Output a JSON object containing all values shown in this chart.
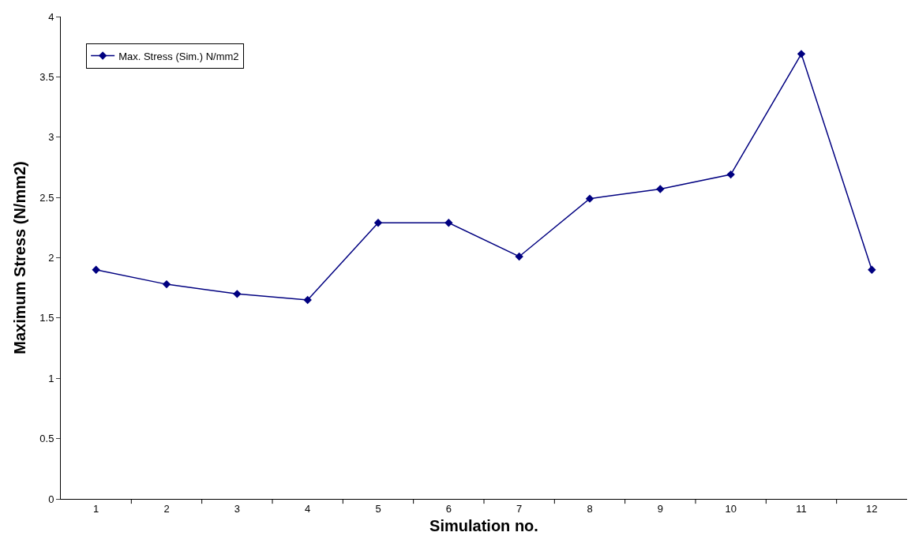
{
  "chart_data": {
    "type": "line",
    "xlabel": "Simulation no.",
    "ylabel": "Maximum Stress (N/mm2)",
    "categories": [
      "1",
      "2",
      "3",
      "4",
      "5",
      "6",
      "7",
      "8",
      "9",
      "10",
      "11",
      "12"
    ],
    "series": [
      {
        "name": "Max. Stress (Sim.) N/mm2",
        "color": "#000080",
        "values": [
          1.9,
          1.78,
          1.7,
          1.65,
          2.29,
          2.29,
          2.01,
          2.49,
          2.57,
          2.69,
          3.69,
          1.9
        ]
      }
    ],
    "ylim": [
      0,
      4
    ],
    "yticks": [
      0,
      0.5,
      1,
      1.5,
      2,
      2.5,
      3,
      3.5,
      4
    ],
    "marker": "diamond",
    "line_style": "solid",
    "legend": "top left"
  }
}
